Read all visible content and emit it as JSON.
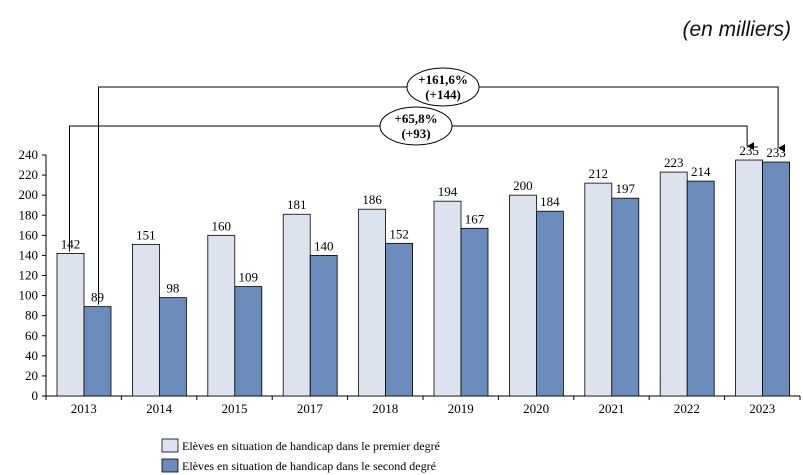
{
  "unit_note": "(en milliers)",
  "colors": {
    "series1": "#dde3ee",
    "series2": "#6b8cba",
    "stroke": "#000000"
  },
  "chart_data": {
    "type": "bar",
    "categories": [
      "2013",
      "2014",
      "2015",
      "2017",
      "2018",
      "2019",
      "2020",
      "2021",
      "2022",
      "2023"
    ],
    "series": [
      {
        "name": "Elèves en situation de handicap dans le premier degré",
        "values": [
          142,
          151,
          160,
          181,
          186,
          194,
          200,
          212,
          223,
          235
        ]
      },
      {
        "name": "Elèves en situation de handicap dans le second degré",
        "values": [
          89,
          98,
          109,
          140,
          152,
          167,
          184,
          197,
          214,
          233
        ]
      }
    ],
    "ylim": [
      0,
      240
    ],
    "yticks": [
      0,
      20,
      40,
      60,
      80,
      100,
      120,
      140,
      160,
      180,
      200,
      220,
      240
    ],
    "legend_position": "bottom",
    "annotations": [
      {
        "line1": "+161,6%",
        "line2": "(+144)",
        "from_category": "2013",
        "from_series": 1,
        "to_category": "2023",
        "to_series": 1
      },
      {
        "line1": "+65,8%",
        "line2": "(+93)",
        "from_category": "2013",
        "from_series": 0,
        "to_category": "2023",
        "to_series": 0
      }
    ]
  }
}
